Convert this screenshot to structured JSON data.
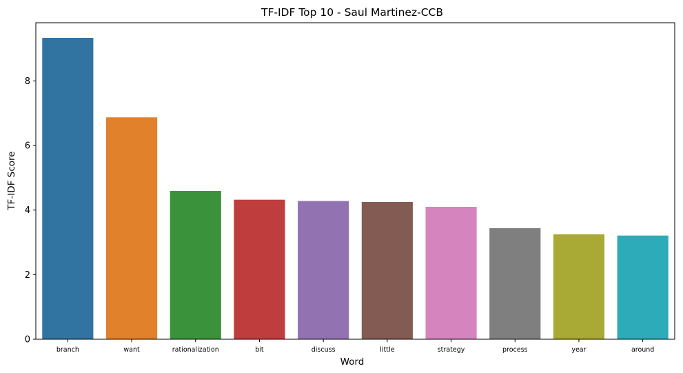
{
  "chart_data": {
    "type": "bar",
    "title": "TF-IDF Top 10 - Saul Martinez-CCB",
    "xlabel": "Word",
    "ylabel": "TF-IDF Score",
    "categories": [
      "branch",
      "want",
      "rationalization",
      "bit",
      "discuss",
      "little",
      "strategy",
      "process",
      "year",
      "around"
    ],
    "values": [
      9.33,
      6.87,
      4.59,
      4.32,
      4.28,
      4.25,
      4.1,
      3.44,
      3.25,
      3.21
    ],
    "colors": [
      "#3274a1",
      "#e1812c",
      "#3a923a",
      "#c03d3e",
      "#9372b2",
      "#845b53",
      "#d684bd",
      "#7f7f7f",
      "#a9aa35",
      "#2eabb8"
    ],
    "ylim": [
      0,
      9.8
    ],
    "yticks": [
      0,
      2,
      4,
      6,
      8
    ],
    "grid": false,
    "legend": "none"
  }
}
